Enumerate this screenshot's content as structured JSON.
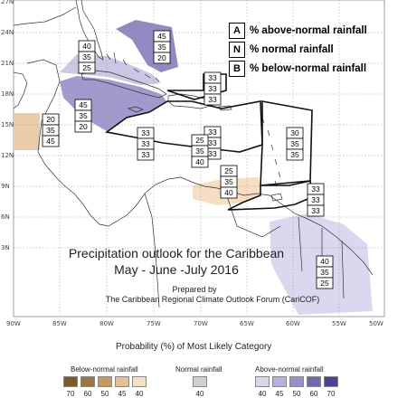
{
  "key": {
    "above": {
      "letter": "A",
      "text": "% above-normal rainfall"
    },
    "normal": {
      "letter": "N",
      "text": "% normal rainfall"
    },
    "below": {
      "letter": "B",
      "text": "% below-normal rainfall"
    }
  },
  "title": {
    "line1": "Precipitation outlook for the Caribbean",
    "line2": "May - June -July 2016",
    "prepared": "Prepared by",
    "forum": "The Caribbean Regional Climate Outlook Forum (CariCOF)"
  },
  "axes": {
    "lat_labels": [
      "27N",
      "24N",
      "21N",
      "18N",
      "15N",
      "12N",
      "9N",
      "6N",
      "3N"
    ],
    "lon_labels": [
      "90W",
      "85W",
      "80W",
      "75W",
      "70W",
      "65W",
      "60W",
      "55W",
      "50W"
    ]
  },
  "regions": [
    {
      "name": "bahamas-north",
      "values": [
        "45",
        "35",
        "20"
      ],
      "category": "above",
      "level": "45"
    },
    {
      "name": "florida-bahamas-west",
      "values": [
        "40",
        "35",
        "25"
      ],
      "category": "above",
      "level": "40"
    },
    {
      "name": "cuba-jamaica",
      "values": [
        "45",
        "35",
        "20"
      ],
      "category": "above",
      "level": "45"
    },
    {
      "name": "belize-yucatan",
      "values": [
        "20",
        "35",
        "45"
      ],
      "category": "below",
      "level": "45"
    },
    {
      "name": "turks-caicos",
      "values": [
        "33",
        "33",
        "33"
      ],
      "category": "none"
    },
    {
      "name": "greater-antilles-central",
      "values": [
        "33",
        "33",
        "33"
      ],
      "category": "none"
    },
    {
      "name": "caribbean-sea-west",
      "values": [
        "33",
        "33",
        "33"
      ],
      "category": "none"
    },
    {
      "name": "caribbean-sea-central",
      "values": [
        "25",
        "35",
        "40"
      ],
      "category": "below",
      "level": "40"
    },
    {
      "name": "leeward-islands",
      "values": [
        "30",
        "35",
        "35"
      ],
      "category": "none"
    },
    {
      "name": "abc-islands",
      "values": [
        "25",
        "35",
        "40"
      ],
      "category": "below",
      "level": "40"
    },
    {
      "name": "windward-trinidad",
      "values": [
        "33",
        "33",
        "33"
      ],
      "category": "none"
    },
    {
      "name": "guianas",
      "values": [
        "40",
        "35",
        "25"
      ],
      "category": "above",
      "level": "40"
    }
  ],
  "legend": {
    "heading": "Probability (%) of Most Likely Category",
    "below_label": "Below-normal rainfall",
    "normal_label": "Normal rainfall",
    "above_label": "Above-normal rainfall",
    "below_levels": [
      "70",
      "60",
      "50",
      "45",
      "40"
    ],
    "below_colors": [
      "#7a5a2a",
      "#9a7645",
      "#c39a62",
      "#e3c095",
      "#f6e0c4"
    ],
    "normal_levels": [
      "40"
    ],
    "normal_colors": [
      "#cfcfcf"
    ],
    "above_levels": [
      "40",
      "45",
      "50",
      "60",
      "70"
    ],
    "above_colors": [
      "#d7d7ec",
      "#b4b2dc",
      "#9590c8",
      "#6f6aae",
      "#4a4590"
    ]
  }
}
